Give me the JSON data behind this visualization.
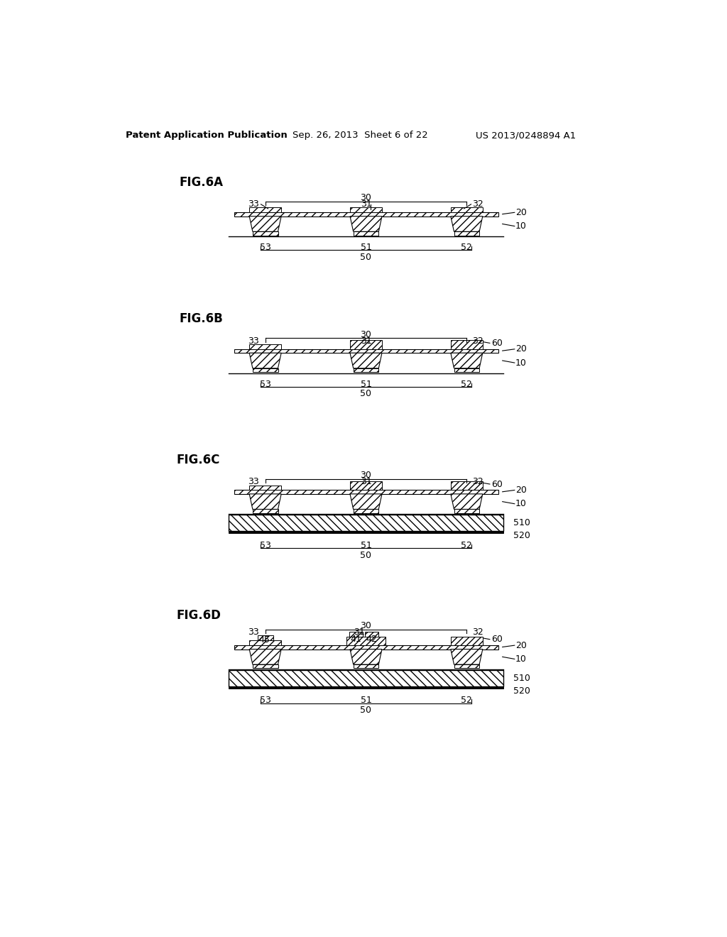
{
  "bg_color": "#ffffff",
  "header_text": "Patent Application Publication",
  "header_date": "Sep. 26, 2013  Sheet 6 of 22",
  "header_patent": "US 2013/0248894 A1",
  "line_color": "#000000"
}
